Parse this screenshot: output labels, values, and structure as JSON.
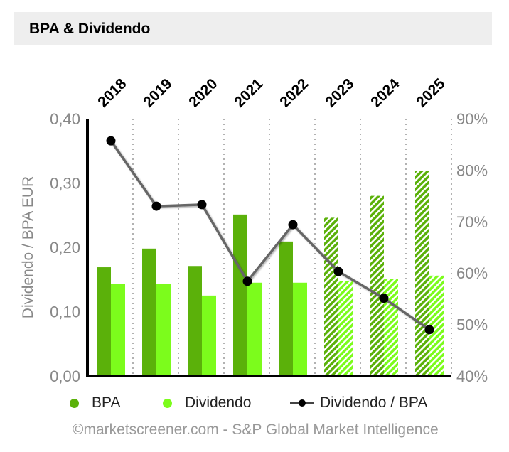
{
  "header": {
    "title": "BPA & Dividendo"
  },
  "legend": {
    "bpa": "BPA",
    "dividendo": "Dividendo",
    "ratio": "Dividendo / BPA"
  },
  "footer": "©marketscreener.com - S&P Global Market Intelligence",
  "colors": {
    "bpa": "#5bb10a",
    "dividendo": "#7cfc1c",
    "line": "#666666",
    "marker": "#000000"
  },
  "chart_data": {
    "type": "bar",
    "title": "BPA & Dividendo",
    "categories": [
      "2018",
      "2019",
      "2020",
      "2021",
      "2022",
      "2023",
      "2024",
      "2025"
    ],
    "forecast_from": "2023",
    "series": [
      {
        "name": "BPA",
        "axis": "left",
        "type": "bar",
        "values": [
          0.169,
          0.198,
          0.171,
          0.251,
          0.209,
          0.246,
          0.28,
          0.319
        ]
      },
      {
        "name": "Dividendo",
        "axis": "left",
        "type": "bar",
        "values": [
          0.143,
          0.143,
          0.125,
          0.145,
          0.145,
          0.147,
          0.151,
          0.156
        ]
      },
      {
        "name": "Dividendo / BPA",
        "axis": "right",
        "type": "line",
        "values": [
          85.7,
          73.0,
          73.3,
          58.4,
          69.4,
          60.3,
          55.1,
          49.0
        ]
      }
    ],
    "ylabel": "Dividendo / BPA EUR",
    "ylim": [
      0,
      0.4
    ],
    "yticks": [
      "0,00",
      "0,10",
      "0,20",
      "0,30",
      "0,40"
    ],
    "y2lim": [
      40,
      90
    ],
    "y2ticks": [
      "40%",
      "50%",
      "60%",
      "70%",
      "80%",
      "90%"
    ],
    "grid": "vertical dotted",
    "legend_position": "bottom"
  }
}
